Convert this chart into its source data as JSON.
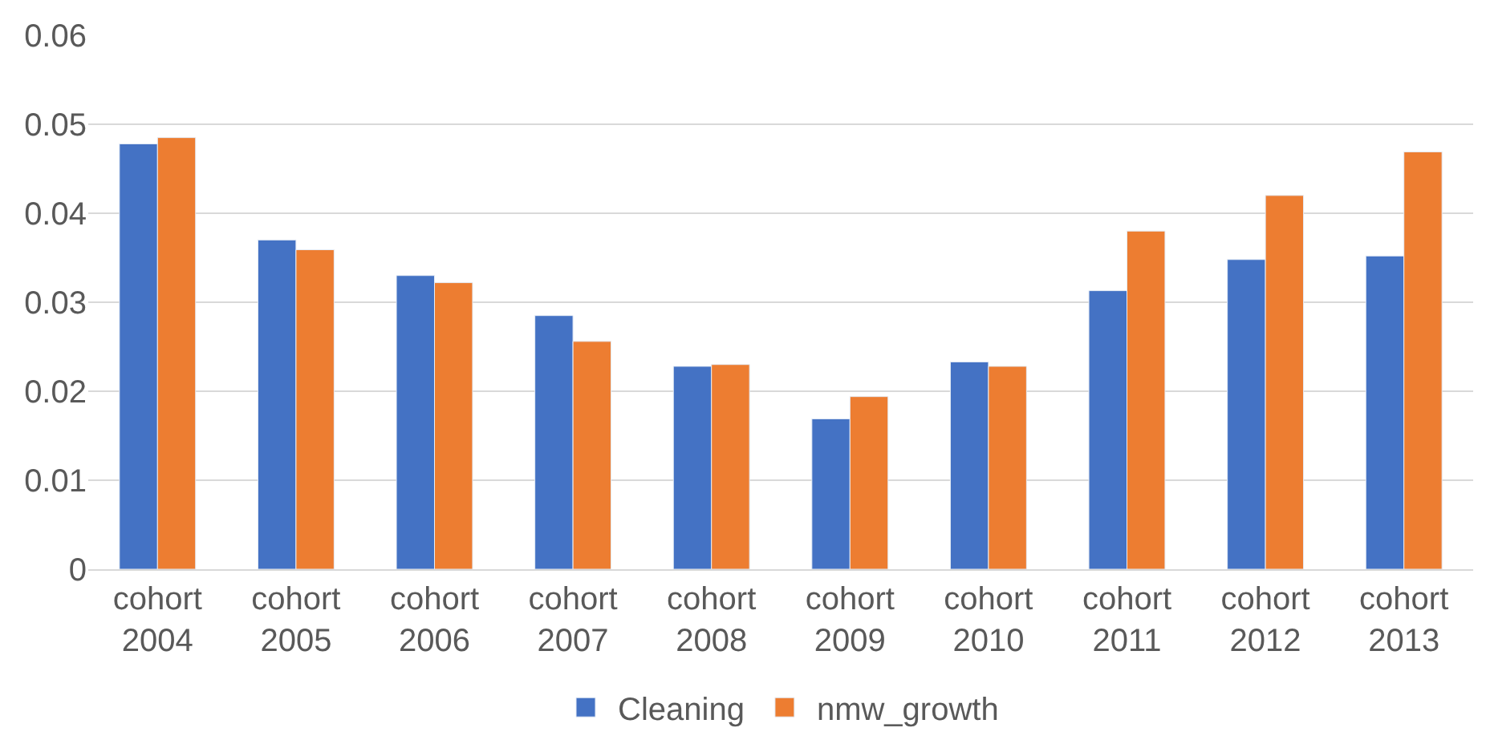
{
  "chart_data": {
    "type": "bar",
    "categories": [
      "cohort 2004",
      "cohort 2005",
      "cohort 2006",
      "cohort 2007",
      "cohort 2008",
      "cohort 2009",
      "cohort 2010",
      "cohort 2011",
      "cohort 2012",
      "cohort 2013"
    ],
    "series": [
      {
        "name": "Cleaning",
        "color": "#4472c4",
        "values": [
          0.0478,
          0.037,
          0.033,
          0.0285,
          0.0228,
          0.0169,
          0.0233,
          0.0313,
          0.0348,
          0.0352
        ]
      },
      {
        "name": "nmw_growth",
        "color": "#ed7d31",
        "values": [
          0.0485,
          0.0359,
          0.0322,
          0.0256,
          0.023,
          0.0194,
          0.0228,
          0.038,
          0.042,
          0.0469
        ]
      }
    ],
    "ylim": [
      0,
      0.06
    ],
    "yticks": [
      {
        "value": 0,
        "label": "0"
      },
      0.01,
      0.02,
      0.03,
      0.04,
      0.05,
      0.06
    ],
    "grid": "y",
    "legend": "bottom"
  }
}
